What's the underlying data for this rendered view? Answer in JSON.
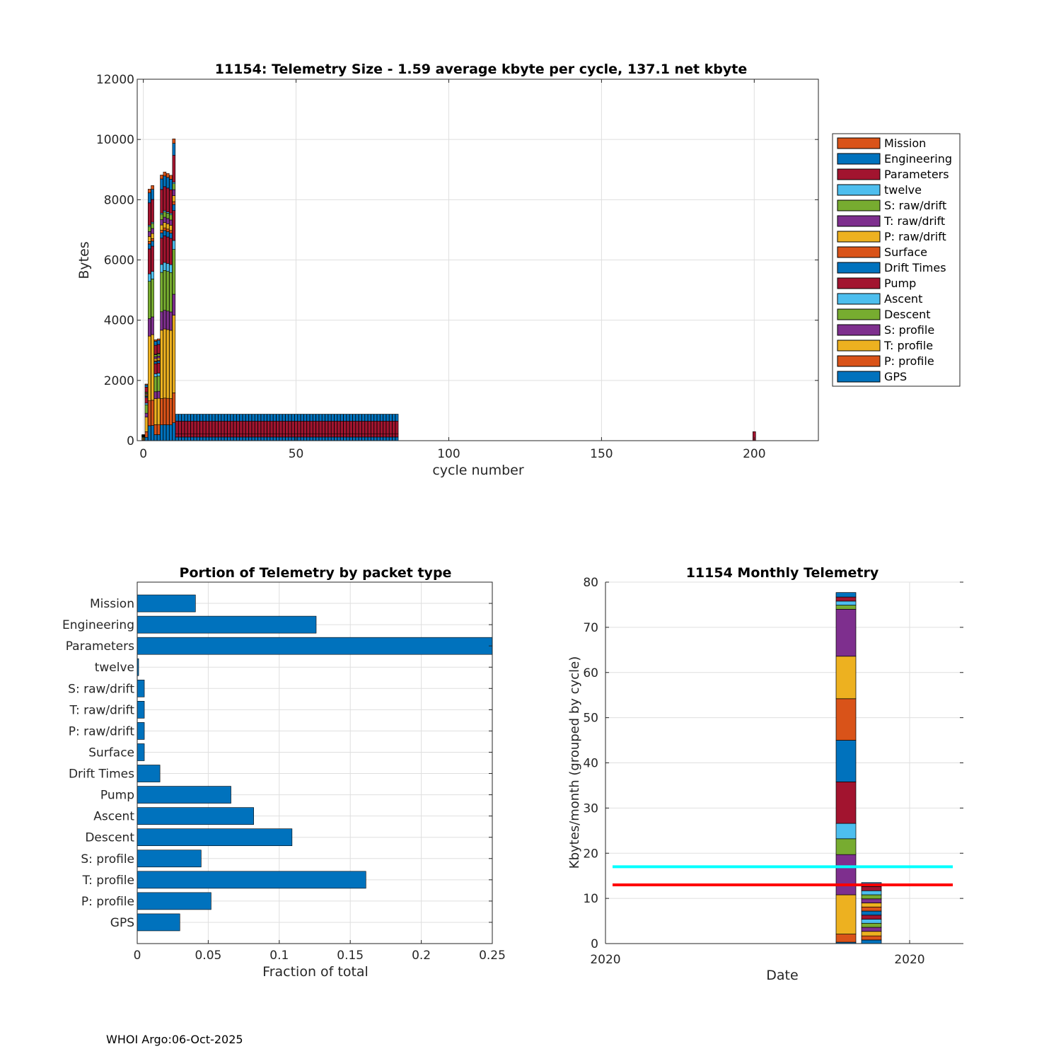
{
  "colors": {
    "Mission": "#D95319",
    "Engineering": "#0072BD",
    "Parameters": "#A2142F",
    "twelve": "#4DBEEE",
    "S: raw/drift": "#77AC30",
    "T: raw/drift": "#7E2F8E",
    "P: raw/drift": "#EDB120",
    "Surface": "#D95319",
    "Drift Times": "#0072BD",
    "Pump": "#A2142F",
    "Ascent": "#4DBEEE",
    "Descent": "#77AC30",
    "S: profile": "#7E2F8E",
    "T: profile": "#EDB120",
    "P: profile": "#D95319",
    "GPS": "#0072BD",
    "bar_blue": "#0072BD",
    "cyan_line": "#00FFFF",
    "red_line": "#FF0000"
  },
  "footer": "WHOI Argo:06-Oct-2025",
  "chart_data": [
    {
      "id": "telemetry_size",
      "type": "bar",
      "stacked": true,
      "title": "11154: Telemetry Size - 1.59 average kbyte per cycle,  137.1 net kbyte",
      "xlabel": "cycle number",
      "ylabel": "Bytes",
      "xlim": [
        -2,
        221
      ],
      "ylim": [
        0,
        12000
      ],
      "xticks": [
        0,
        50,
        100,
        150,
        200
      ],
      "yticks": [
        0,
        2000,
        4000,
        6000,
        8000,
        10000,
        12000
      ],
      "grid": true,
      "legend_position": "outside-right",
      "legend": [
        "Mission",
        "Engineering",
        "Parameters",
        "twelve",
        "S: raw/drift",
        "T: raw/drift",
        "P: raw/drift",
        "Surface",
        "Drift Times",
        "Pump",
        "Ascent",
        "Descent",
        "S: profile",
        "T: profile",
        "P: profile",
        "GPS"
      ],
      "cycles": [
        {
          "x": 0,
          "total": 200
        },
        {
          "x": 1,
          "total": 1880
        },
        {
          "x": 2,
          "total": 8350
        },
        {
          "x": 3,
          "total": 8470
        },
        {
          "x": 4,
          "total": 3350
        },
        {
          "x": 5,
          "total": 3380
        },
        {
          "x": 6,
          "total": 8820
        },
        {
          "x": 7,
          "total": 8920
        },
        {
          "x": 8,
          "total": 8870
        },
        {
          "x": 9,
          "total": 8810
        },
        {
          "x": 10,
          "total": 10020
        }
      ],
      "steady": {
        "from": 11,
        "to": 83,
        "total": 880,
        "layers": {
          "Engineering": 230,
          "Parameters": 420,
          "Pump": 110,
          "GPS": 120
        }
      },
      "extra": [
        {
          "x": 200,
          "total": 300,
          "series": "Parameters"
        }
      ]
    },
    {
      "id": "portion_by_type",
      "type": "bar",
      "orientation": "horizontal",
      "title": "Portion of Telemetry by packet type",
      "xlabel": "Fraction of total",
      "xlim": [
        0,
        0.25
      ],
      "xticks": [
        0,
        0.05,
        0.1,
        0.15,
        0.2,
        0.25
      ],
      "xtick_labels": [
        "0",
        "0.05",
        "0.1",
        "0.15",
        "0.2",
        "0.25"
      ],
      "grid": true,
      "categories": [
        "Mission",
        "Engineering",
        "Parameters",
        "twelve",
        "S: raw/drift",
        "T: raw/drift",
        "P: raw/drift",
        "Surface",
        "Drift Times",
        "Pump",
        "Ascent",
        "Descent",
        "S: profile",
        "T: profile",
        "P: profile",
        "GPS"
      ],
      "values": [
        0.041,
        0.126,
        0.25,
        0.001,
        0.005,
        0.005,
        0.005,
        0.005,
        0.016,
        0.066,
        0.082,
        0.109,
        0.045,
        0.161,
        0.052,
        0.03
      ]
    },
    {
      "id": "monthly_telemetry",
      "type": "bar",
      "stacked": true,
      "title": "11154 Monthly Telemetry",
      "xlabel": "Date",
      "ylabel": "Kbytes/month (grouped by cycle)",
      "ylim": [
        0,
        80
      ],
      "yticks": [
        0,
        10,
        20,
        30,
        40,
        50,
        60,
        70,
        80
      ],
      "xtick_labels": [
        "2020",
        "2020"
      ],
      "grid": true,
      "months": [
        {
          "index": 0,
          "segments": [
            {
              "series": "GPS",
              "value": 0.3
            },
            {
              "series": "P: profile",
              "value": 1.8
            },
            {
              "series": "T: profile",
              "value": 8.7
            },
            {
              "series": "S: profile",
              "value": 8.9
            },
            {
              "series": "Descent",
              "value": 3.5
            },
            {
              "series": "Ascent",
              "value": 3.4
            },
            {
              "series": "Pump",
              "value": 9.2
            },
            {
              "series": "Drift Times",
              "value": 9.2
            },
            {
              "series": "Surface",
              "value": 9.2
            },
            {
              "series": "P: raw/drift",
              "value": 9.4
            },
            {
              "series": "T: raw/drift",
              "value": 10.4
            },
            {
              "series": "S: raw/drift",
              "value": 0.9
            },
            {
              "series": "twelve",
              "value": 0.9
            },
            {
              "series": "Parameters",
              "value": 0.9
            },
            {
              "series": "Engineering",
              "value": 1.0
            }
          ]
        },
        {
          "index": 1,
          "segments": [
            {
              "series": "GPS",
              "value": 0.8
            },
            {
              "series": "P: profile",
              "value": 0.9
            },
            {
              "series": "T: profile",
              "value": 1.0
            },
            {
              "series": "S: profile",
              "value": 0.9
            },
            {
              "series": "Descent",
              "value": 0.9
            },
            {
              "series": "Ascent",
              "value": 0.9
            },
            {
              "series": "Pump",
              "value": 0.9
            },
            {
              "series": "Drift Times",
              "value": 0.9
            },
            {
              "series": "Surface",
              "value": 0.9
            },
            {
              "series": "P: raw/drift",
              "value": 0.9
            },
            {
              "series": "T: raw/drift",
              "value": 0.9
            },
            {
              "series": "S: raw/drift",
              "value": 0.9
            },
            {
              "series": "twelve",
              "value": 0.9
            },
            {
              "series": "Parameters",
              "value": 0.9
            },
            {
              "series": "Engineering",
              "value": 0.9
            }
          ]
        }
      ],
      "reference_lines": [
        {
          "name": "cyan",
          "y": 17,
          "color": "#00FFFF"
        },
        {
          "name": "red",
          "y": 13,
          "color": "#FF0000"
        }
      ]
    }
  ]
}
